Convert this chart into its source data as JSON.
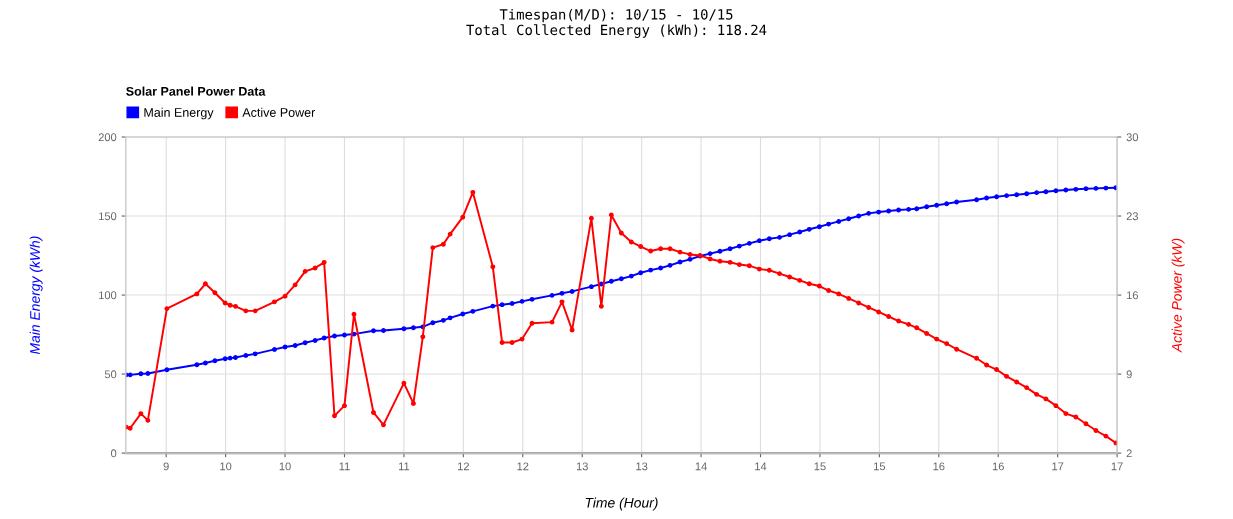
{
  "chart_data": {
    "type": "line",
    "title": "Solar Panel Power Data",
    "annotations": [
      "Timespan(M/D): 10/15 - 10/15",
      "Total Collected Energy (kWh): 118.24"
    ],
    "xlabel": "Time (Hour)",
    "ylabel": "Main Energy (kWh)",
    "y2label": "Active Power (kW)",
    "x": [
      8.664,
      8.697,
      8.787,
      8.846,
      9.006,
      9.258,
      9.33,
      9.41,
      9.496,
      9.538,
      9.583,
      9.67,
      9.749,
      9.911,
      10.0,
      10.085,
      10.169,
      10.253,
      10.329,
      10.416,
      10.5,
      10.58,
      10.744,
      10.828,
      11.0,
      11.08,
      11.159,
      11.243,
      11.332,
      11.389,
      11.495,
      11.58,
      11.748,
      11.826,
      11.91,
      11.994,
      12.078,
      12.246,
      12.33,
      12.415,
      12.577,
      12.661,
      12.745,
      12.829,
      12.913,
      12.992,
      13.076,
      13.16,
      13.239,
      13.323,
      13.407,
      13.491,
      13.576,
      13.659,
      13.744,
      13.822,
      13.906,
      13.99,
      14.074,
      14.16,
      14.245,
      14.33,
      14.41,
      14.495,
      14.573,
      14.658,
      14.742,
      14.826,
      14.91,
      14.994,
      15.078,
      15.162,
      15.246,
      15.314,
      15.398,
      15.482,
      15.566,
      15.65,
      15.818,
      15.902,
      15.986,
      16.07,
      16.155,
      16.239,
      16.323,
      16.401,
      16.485,
      16.569,
      16.653,
      16.738,
      16.822,
      16.906,
      16.99
    ],
    "series": [
      {
        "name": "Main Energy",
        "color": "#0000ff",
        "values": [
          49.5,
          49.5,
          50.2,
          50.4,
          52.7,
          55.9,
          57.0,
          58.4,
          59.7,
          60.1,
          60.5,
          61.8,
          62.8,
          65.6,
          67.1,
          68.1,
          69.8,
          71.3,
          72.8,
          74.1,
          74.7,
          75.3,
          77.4,
          77.6,
          78.7,
          79.3,
          79.9,
          82.5,
          84.0,
          85.6,
          88.0,
          89.7,
          93.0,
          93.9,
          94.7,
          96.0,
          97.3,
          99.8,
          101.1,
          102.3,
          105.3,
          107.0,
          108.7,
          110.3,
          112.0,
          114.1,
          115.8,
          117.1,
          118.8,
          120.9,
          122.6,
          124.7,
          126.2,
          127.7,
          129.3,
          131.0,
          132.7,
          134.4,
          135.6,
          136.5,
          138.2,
          139.9,
          141.6,
          143.2,
          144.9,
          146.6,
          148.3,
          150.0,
          151.7,
          152.5,
          153.2,
          153.8,
          154.2,
          154.6,
          155.9,
          156.8,
          157.8,
          158.9,
          160.3,
          161.4,
          162.2,
          162.9,
          163.5,
          164.1,
          164.8,
          165.4,
          166.0,
          166.5,
          166.9,
          167.3,
          167.5,
          167.7,
          167.9
        ]
      },
      {
        "name": "Active Power",
        "color": "#ff0000",
        "axis": "y2",
        "values": [
          4.3,
          4.2,
          5.5,
          4.9,
          14.8,
          16.1,
          17.0,
          16.2,
          15.3,
          15.1,
          15.0,
          14.6,
          14.6,
          15.4,
          15.9,
          16.9,
          18.1,
          18.4,
          18.9,
          5.3,
          6.2,
          14.3,
          5.6,
          4.5,
          8.2,
          6.4,
          12.3,
          20.2,
          20.5,
          21.4,
          22.9,
          25.1,
          18.5,
          11.8,
          11.8,
          12.1,
          13.5,
          13.6,
          15.4,
          12.9,
          22.8,
          15.0,
          23.1,
          21.5,
          20.7,
          20.3,
          19.9,
          20.1,
          20.1,
          19.8,
          19.6,
          19.5,
          19.2,
          19.0,
          18.9,
          18.7,
          18.6,
          18.3,
          18.2,
          17.9,
          17.6,
          17.3,
          17.0,
          16.8,
          16.4,
          16.1,
          15.7,
          15.3,
          14.9,
          14.5,
          14.1,
          13.7,
          13.4,
          13.1,
          12.6,
          12.1,
          11.7,
          11.2,
          10.4,
          9.8,
          9.4,
          8.8,
          8.3,
          7.8,
          7.2,
          6.8,
          6.2,
          5.5,
          5.2,
          4.6,
          4.0,
          3.5,
          2.9
        ]
      }
    ],
    "xlim": [
      8.66,
      17
    ],
    "xticks": [
      9,
      {
        "value": 9.5,
        "label": "10"
      },
      10,
      {
        "value": 10.5,
        "label": "11"
      },
      11,
      {
        "value": 11.5,
        "label": "12"
      },
      12,
      {
        "value": 12.5,
        "label": "13"
      },
      13,
      {
        "value": 13.5,
        "label": "14"
      },
      14,
      {
        "value": 14.5,
        "label": "15"
      },
      15,
      {
        "value": 15.5,
        "label": "16"
      },
      16,
      {
        "value": 16.5,
        "label": "17"
      },
      17
    ],
    "ylim": [
      0,
      200
    ],
    "yticks": [
      0,
      50,
      100,
      150,
      200
    ],
    "y2lim": [
      2,
      30
    ],
    "y2ticks": [
      2,
      9,
      16,
      23,
      30
    ],
    "grid": true,
    "legend": "top left",
    "marker": "circle",
    "line_style": "solid"
  }
}
